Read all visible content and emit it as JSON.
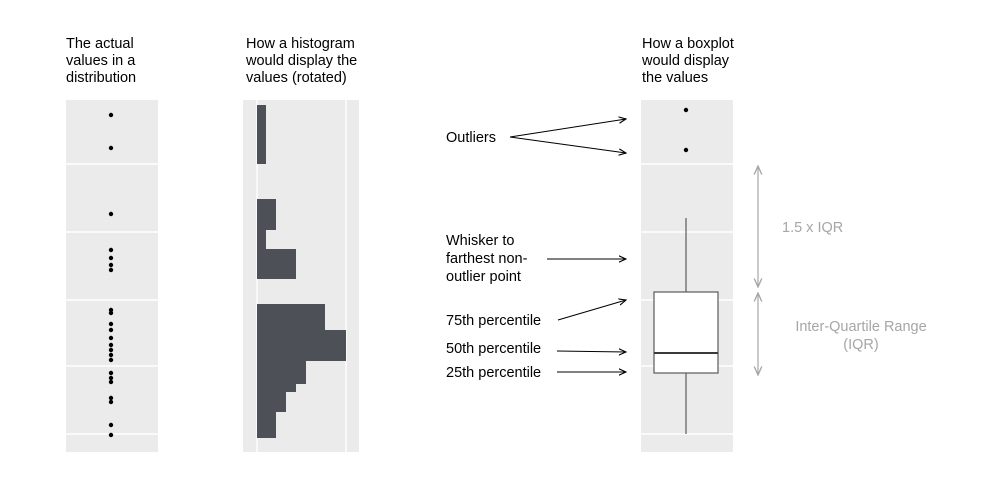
{
  "titles": {
    "values": [
      "The actual",
      "values in a",
      "distribution"
    ],
    "histogram": [
      "How a histogram",
      "would display the",
      "values (rotated)"
    ],
    "boxplot": [
      "How a boxplot",
      "would display",
      "the values"
    ]
  },
  "labels": {
    "outliers": "Outliers",
    "whisker": [
      "Whisker to",
      "farthest non-",
      "outlier point"
    ],
    "p75": "75th percentile",
    "p50": "50th percentile",
    "p25": "25th percentile",
    "range_15iqr": "1.5 x IQR",
    "iqr": [
      "Inter-Quartile Range",
      "(IQR)"
    ]
  },
  "colors": {
    "panel_bg": "#ebebeb",
    "gridline": "#ffffff",
    "bar_fill": "#4d5057",
    "dot": "#000000",
    "box_stroke": "#595959",
    "arrow": "#000000",
    "range_arrow": "#a6a6a6"
  }
}
